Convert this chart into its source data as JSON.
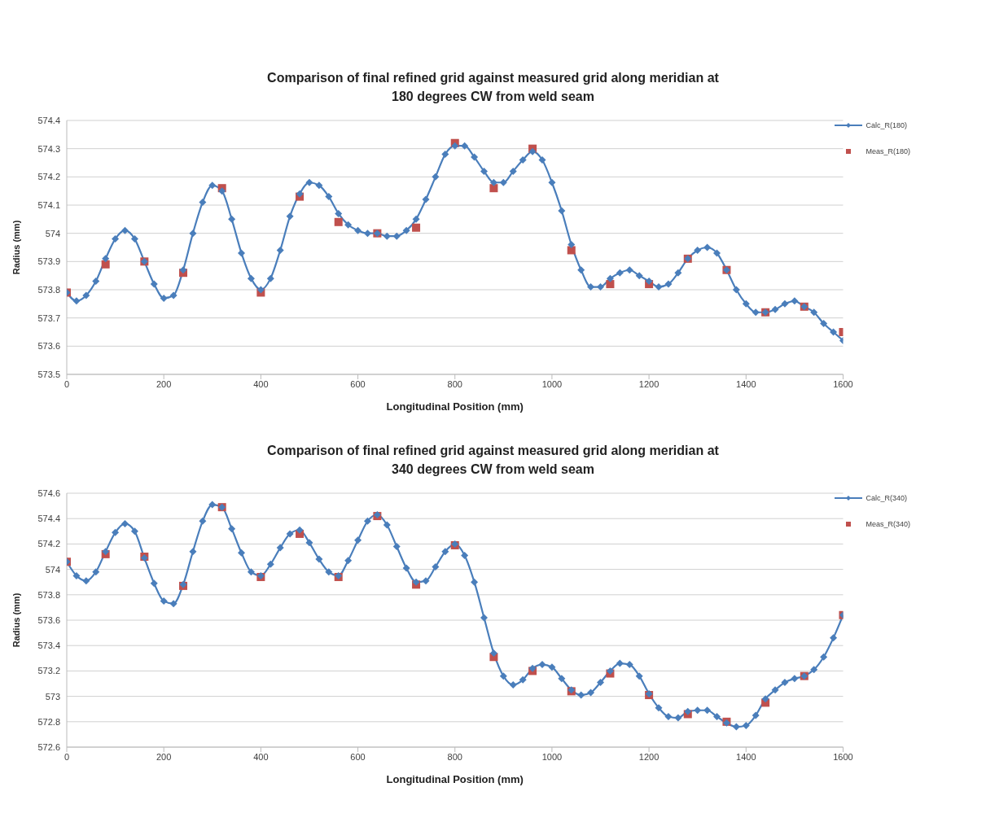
{
  "chart_data": [
    {
      "type": "line",
      "title": "Comparison of final refined grid against measured grid along meridian at 180 degrees CW from weld seam",
      "xlabel": "Longitudinal Position (mm)",
      "ylabel": "Radius (mm)",
      "xlim": [
        0,
        1600
      ],
      "xticks": [
        0,
        200,
        400,
        600,
        800,
        1000,
        1200,
        1400,
        1600
      ],
      "ylim": [
        573.5,
        574.4
      ],
      "yticks": [
        573.5,
        573.6,
        573.7,
        573.8,
        573.9,
        574,
        574.1,
        574.2,
        574.3,
        574.4
      ],
      "grid": "y",
      "legend": "top right",
      "series": [
        {
          "name": "Calc_R(180)",
          "color": "#4a7ebb",
          "marker": "diamond",
          "line_style": "solid",
          "x": [
            0,
            20,
            40,
            60,
            80,
            100,
            120,
            140,
            160,
            180,
            200,
            220,
            240,
            260,
            280,
            300,
            320,
            340,
            360,
            380,
            400,
            420,
            440,
            460,
            480,
            500,
            520,
            540,
            560,
            580,
            600,
            620,
            640,
            660,
            680,
            700,
            720,
            740,
            760,
            780,
            800,
            820,
            840,
            860,
            880,
            900,
            920,
            940,
            960,
            980,
            1000,
            1020,
            1040,
            1060,
            1080,
            1100,
            1120,
            1140,
            1160,
            1180,
            1200,
            1220,
            1240,
            1260,
            1280,
            1300,
            1320,
            1340,
            1360,
            1380,
            1400,
            1420,
            1440,
            1460,
            1480,
            1500,
            1520,
            1540,
            1560,
            1580,
            1600
          ],
          "values": [
            573.79,
            573.76,
            573.78,
            573.83,
            573.91,
            573.98,
            574.01,
            573.98,
            573.9,
            573.82,
            573.77,
            573.78,
            573.87,
            574.0,
            574.11,
            574.17,
            574.15,
            574.05,
            573.93,
            573.84,
            573.8,
            573.84,
            573.94,
            574.06,
            574.14,
            574.18,
            574.17,
            574.13,
            574.07,
            574.03,
            574.01,
            574.0,
            574.0,
            573.99,
            573.99,
            574.01,
            574.05,
            574.12,
            574.2,
            574.28,
            574.31,
            574.31,
            574.27,
            574.22,
            574.18,
            574.18,
            574.22,
            574.26,
            574.29,
            574.26,
            574.18,
            574.08,
            573.96,
            573.87,
            573.81,
            573.81,
            573.84,
            573.86,
            573.87,
            573.85,
            573.83,
            573.81,
            573.82,
            573.86,
            573.91,
            573.94,
            573.95,
            573.93,
            573.87,
            573.8,
            573.75,
            573.72,
            573.72,
            573.73,
            573.75,
            573.76,
            573.74,
            573.72,
            573.68,
            573.65,
            573.62
          ]
        },
        {
          "name": "Meas_R(180)",
          "type": "scatter",
          "color": "#c0504d",
          "marker": "square",
          "x": [
            0,
            80,
            160,
            240,
            320,
            400,
            480,
            560,
            640,
            720,
            800,
            880,
            960,
            1040,
            1120,
            1200,
            1280,
            1360,
            1440,
            1520,
            1600
          ],
          "values": [
            573.79,
            573.89,
            573.9,
            573.86,
            574.16,
            573.79,
            574.13,
            574.04,
            574.0,
            574.02,
            574.32,
            574.16,
            574.3,
            573.94,
            573.82,
            573.82,
            573.91,
            573.87,
            573.72,
            573.74,
            573.65
          ]
        }
      ]
    },
    {
      "type": "line",
      "title": "Comparison of final refined grid against measured grid along meridian at 340 degrees CW from weld seam",
      "xlabel": "Longitudinal Position (mm)",
      "ylabel": "Radius (mm)",
      "xlim": [
        0,
        1600
      ],
      "xticks": [
        0,
        200,
        400,
        600,
        800,
        1000,
        1200,
        1400,
        1600
      ],
      "ylim": [
        572.6,
        574.6
      ],
      "yticks": [
        572.6,
        572.8,
        573,
        573.2,
        573.4,
        573.6,
        573.8,
        574,
        574.2,
        574.4,
        574.6
      ],
      "grid": "y",
      "legend": "top right",
      "series": [
        {
          "name": "Calc_R(340)",
          "color": "#4a7ebb",
          "marker": "diamond",
          "line_style": "solid",
          "x": [
            0,
            20,
            40,
            60,
            80,
            100,
            120,
            140,
            160,
            180,
            200,
            220,
            240,
            260,
            280,
            300,
            320,
            340,
            360,
            380,
            400,
            420,
            440,
            460,
            480,
            500,
            520,
            540,
            560,
            580,
            600,
            620,
            640,
            660,
            680,
            700,
            720,
            740,
            760,
            780,
            800,
            820,
            840,
            860,
            880,
            900,
            920,
            940,
            960,
            980,
            1000,
            1020,
            1040,
            1060,
            1080,
            1100,
            1120,
            1140,
            1160,
            1180,
            1200,
            1220,
            1240,
            1260,
            1280,
            1300,
            1320,
            1340,
            1360,
            1380,
            1400,
            1420,
            1440,
            1460,
            1480,
            1500,
            1520,
            1540,
            1560,
            1580,
            1600
          ],
          "values": [
            574.06,
            573.95,
            573.91,
            573.98,
            574.14,
            574.29,
            574.36,
            574.3,
            574.09,
            573.89,
            573.75,
            573.73,
            573.88,
            574.14,
            574.38,
            574.51,
            574.49,
            574.32,
            574.13,
            573.98,
            573.95,
            574.04,
            574.17,
            574.28,
            574.31,
            574.21,
            574.08,
            573.98,
            573.95,
            574.07,
            574.23,
            574.38,
            574.43,
            574.35,
            574.18,
            574.01,
            573.9,
            573.91,
            574.02,
            574.14,
            574.2,
            574.11,
            573.9,
            573.62,
            573.34,
            573.16,
            573.09,
            573.13,
            573.22,
            573.25,
            573.23,
            573.14,
            573.05,
            573.01,
            573.03,
            573.11,
            573.2,
            573.26,
            573.25,
            573.16,
            573.02,
            572.91,
            572.84,
            572.83,
            572.88,
            572.89,
            572.89,
            572.84,
            572.79,
            572.76,
            572.77,
            572.85,
            572.98,
            573.05,
            573.11,
            573.14,
            573.16,
            573.21,
            573.31,
            573.46,
            573.64
          ]
        },
        {
          "name": "Meas_R(340)",
          "type": "scatter",
          "color": "#c0504d",
          "marker": "square",
          "x": [
            0,
            80,
            160,
            240,
            320,
            400,
            480,
            560,
            640,
            720,
            800,
            880,
            960,
            1040,
            1120,
            1200,
            1280,
            1360,
            1440,
            1520,
            1600
          ],
          "values": [
            574.06,
            574.12,
            574.1,
            573.87,
            574.49,
            573.94,
            574.28,
            573.94,
            574.42,
            573.88,
            574.19,
            573.31,
            573.2,
            573.04,
            573.18,
            573.01,
            572.86,
            572.8,
            572.95,
            573.16,
            573.64
          ]
        }
      ]
    }
  ]
}
